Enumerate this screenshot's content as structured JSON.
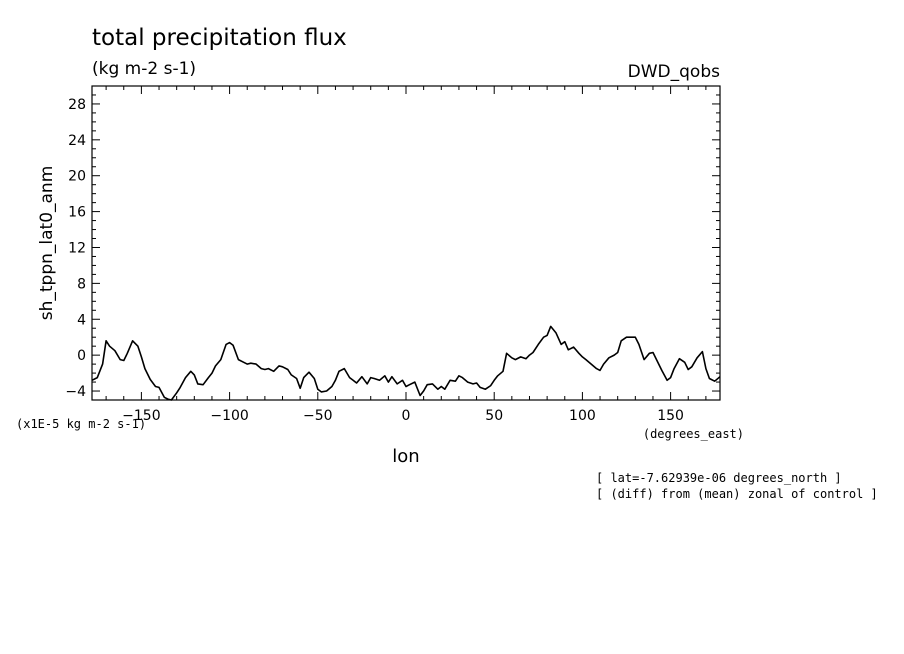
{
  "chart_data": {
    "type": "line",
    "title": "total precipitation flux",
    "units": "(kg m-2 s-1)",
    "dataset": "DWD_qobs",
    "xlabel": "lon",
    "xunits": "(degrees_east)",
    "ylabel": "sh_tppn_lat0_anm",
    "yscale_label": "(x1E-5 kg m-2 s-1)",
    "notes": [
      "[ lat=-7.62939e-06 degrees_north ]",
      "[ (diff) from (mean) zonal of control ]"
    ],
    "xlim": [
      -178,
      178
    ],
    "ylim": [
      -5,
      30
    ],
    "x_ticks": [
      -150,
      -100,
      -50,
      0,
      50,
      100,
      150
    ],
    "x_tick_labels": [
      "-150",
      "-100",
      "-50",
      "0",
      "50",
      "100",
      "150"
    ],
    "y_ticks": [
      -4,
      0,
      4,
      8,
      12,
      16,
      20,
      24,
      28
    ],
    "y_tick_labels": [
      "-4",
      "0",
      "4",
      "8",
      "12",
      "16",
      "20",
      "24",
      "28"
    ],
    "series": [
      {
        "name": "sh_tppn_lat0_anm",
        "x": [
          -178,
          -175,
          -172,
          -170,
          -168,
          -165,
          -162,
          -160,
          -158,
          -155,
          -152,
          -150,
          -148,
          -145,
          -142,
          -140,
          -137,
          -135,
          -133,
          -130,
          -128,
          -125,
          -122,
          -120,
          -118,
          -115,
          -112,
          -110,
          -108,
          -105,
          -102,
          -100,
          -98,
          -95,
          -92,
          -90,
          -88,
          -85,
          -82,
          -80,
          -78,
          -75,
          -72,
          -70,
          -67,
          -65,
          -62,
          -60,
          -58,
          -55,
          -52,
          -50,
          -48,
          -45,
          -42,
          -40,
          -38,
          -35,
          -32,
          -30,
          -28,
          -25,
          -22,
          -20,
          -18,
          -15,
          -12,
          -10,
          -8,
          -5,
          -2,
          0,
          2,
          5,
          8,
          10,
          12,
          15,
          18,
          20,
          22,
          25,
          28,
          30,
          32,
          35,
          38,
          40,
          42,
          45,
          48,
          50,
          52,
          55,
          57,
          60,
          62,
          65,
          68,
          70,
          72,
          75,
          78,
          80,
          82,
          85,
          88,
          90,
          92,
          95,
          98,
          100,
          102,
          105,
          108,
          110,
          112,
          115,
          118,
          120,
          122,
          125,
          128,
          130,
          132,
          135,
          138,
          140,
          142,
          145,
          148,
          150,
          152,
          155,
          158,
          160,
          162,
          165,
          168,
          170,
          172,
          175,
          178
        ],
        "values": [
          -2.8,
          -2.5,
          -1,
          1.6,
          1,
          0.5,
          -0.5,
          -0.6,
          0.2,
          1.6,
          1,
          -0.2,
          -1.5,
          -2.7,
          -3.5,
          -3.6,
          -4.7,
          -4.9,
          -5,
          -4.2,
          -3.6,
          -2.5,
          -1.8,
          -2.2,
          -3.2,
          -3.3,
          -2.5,
          -2,
          -1.2,
          -0.5,
          1.2,
          1.4,
          1.1,
          -0.5,
          -0.8,
          -1,
          -0.9,
          -1,
          -1.5,
          -1.6,
          -1.5,
          -1.8,
          -1.2,
          -1.3,
          -1.6,
          -2.2,
          -2.6,
          -3.7,
          -2.5,
          -1.9,
          -2.6,
          -3.8,
          -4.1,
          -4,
          -3.5,
          -2.8,
          -1.8,
          -1.5,
          -2.5,
          -2.8,
          -3.1,
          -2.4,
          -3.2,
          -2.5,
          -2.6,
          -2.8,
          -2.3,
          -3,
          -2.4,
          -3.2,
          -2.8,
          -3.5,
          -3.3,
          -3,
          -4.5,
          -4,
          -3.3,
          -3.2,
          -3.8,
          -3.5,
          -3.8,
          -2.8,
          -2.9,
          -2.3,
          -2.5,
          -3,
          -3.2,
          -3.1,
          -3.6,
          -3.8,
          -3.4,
          -2.8,
          -2.3,
          -1.8,
          0.2,
          -0.3,
          -0.5,
          -0.2,
          -0.4,
          0,
          0.3,
          1.2,
          2,
          2.2,
          3.2,
          2.5,
          1.2,
          1.5,
          0.6,
          0.9,
          0.2,
          -0.2,
          -0.5,
          -1,
          -1.5,
          -1.7,
          -1,
          -0.3,
          0,
          0.3,
          1.6,
          2,
          2,
          2,
          1.2,
          -0.5,
          0.2,
          0.3,
          -0.5,
          -1.7,
          -2.8,
          -2.5,
          -1.5,
          -0.4,
          -0.8,
          -1.6,
          -1.3,
          -0.3,
          0.4,
          -1.5,
          -2.6,
          -2.9,
          -2.4
        ]
      }
    ]
  }
}
